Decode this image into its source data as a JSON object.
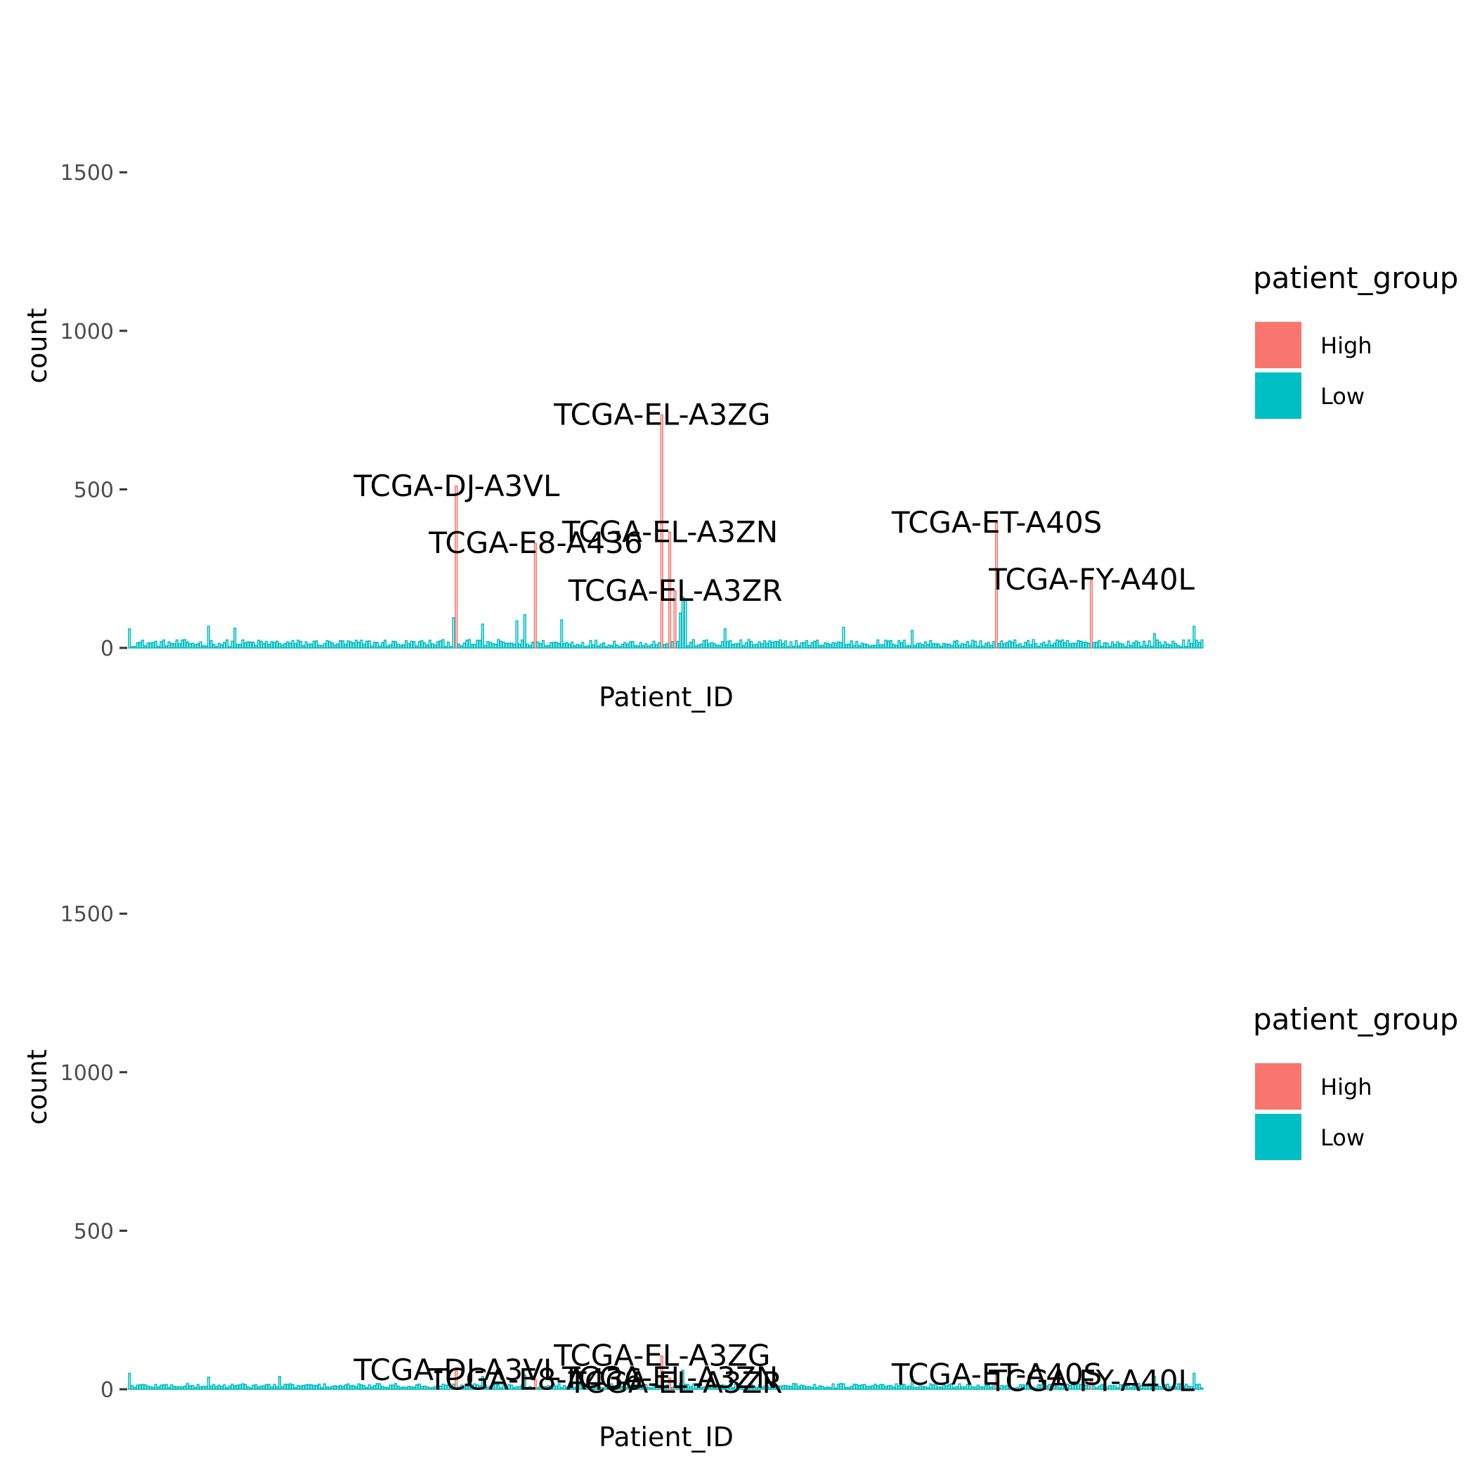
{
  "chart_data": [
    {
      "type": "bar",
      "xlabel": "Patient_ID",
      "ylabel": "count",
      "ylim": [
        0,
        1800
      ],
      "yticks": [
        0,
        500,
        1000,
        1500
      ],
      "grid": false,
      "legend": {
        "title": "patient_group",
        "placement": "right",
        "entries": [
          {
            "label": "High",
            "color": "#F8766D"
          },
          {
            "label": "Low",
            "color": "#00BFC4"
          }
        ]
      },
      "n_patients": 408,
      "high_bars": [
        {
          "label": "TCGA-DJ-A3VL",
          "index": 124,
          "value": 510
        },
        {
          "label": "TCGA-E8-A436",
          "index": 154,
          "value": 330
        },
        {
          "label": "TCGA-EL-A3ZG",
          "index": 202,
          "value": 735
        },
        {
          "label": "TCGA-EL-A3ZN",
          "index": 205,
          "value": 365
        },
        {
          "label": "TCGA-EL-A3ZR",
          "index": 207,
          "value": 180
        },
        {
          "label": "TCGA-ET-A40S",
          "index": 329,
          "value": 395
        },
        {
          "label": "TCGA-FY-A40L",
          "index": 365,
          "value": 215
        }
      ],
      "low_bars_notable": [
        {
          "index": 0,
          "value": 60
        },
        {
          "index": 30,
          "value": 68
        },
        {
          "index": 40,
          "value": 62
        },
        {
          "index": 123,
          "value": 95
        },
        {
          "index": 134,
          "value": 75
        },
        {
          "index": 147,
          "value": 85
        },
        {
          "index": 150,
          "value": 105
        },
        {
          "index": 164,
          "value": 88
        },
        {
          "index": 209,
          "value": 110
        },
        {
          "index": 210,
          "value": 160
        },
        {
          "index": 211,
          "value": 155
        },
        {
          "index": 226,
          "value": 60
        },
        {
          "index": 271,
          "value": 65
        },
        {
          "index": 297,
          "value": 55
        },
        {
          "index": 389,
          "value": 45
        },
        {
          "index": 404,
          "value": 68
        }
      ]
    },
    {
      "type": "bar",
      "xlabel": "Patient_ID",
      "ylabel": "count",
      "ylim": [
        0,
        1800
      ],
      "yticks": [
        0,
        500,
        1000,
        1500
      ],
      "grid": false,
      "legend": {
        "title": "patient_group",
        "placement": "right",
        "entries": [
          {
            "label": "High",
            "color": "#F8766D"
          },
          {
            "label": "Low",
            "color": "#00BFC4"
          }
        ]
      },
      "n_patients": 408,
      "high_bars": [
        {
          "label": "TCGA-DJ-A3VL",
          "index": 124,
          "value": 60
        },
        {
          "label": "TCGA-E8-A436",
          "index": 154,
          "value": 30
        },
        {
          "label": "TCGA-EL-A3ZG",
          "index": 202,
          "value": 105
        },
        {
          "label": "TCGA-EL-A3ZN",
          "index": 205,
          "value": 35
        },
        {
          "label": "TCGA-EL-A3ZR",
          "index": 207,
          "value": 20
        },
        {
          "label": "TCGA-ET-A40S",
          "index": 329,
          "value": 45
        },
        {
          "label": "TCGA-FY-A40L",
          "index": 365,
          "value": 25
        }
      ],
      "low_bars_notable": [
        {
          "index": 0,
          "value": 50
        },
        {
          "index": 30,
          "value": 38
        },
        {
          "index": 57,
          "value": 40
        },
        {
          "index": 134,
          "value": 40
        },
        {
          "index": 150,
          "value": 45
        },
        {
          "index": 210,
          "value": 60
        },
        {
          "index": 297,
          "value": 40
        },
        {
          "index": 389,
          "value": 40
        },
        {
          "index": 404,
          "value": 50
        }
      ]
    }
  ]
}
